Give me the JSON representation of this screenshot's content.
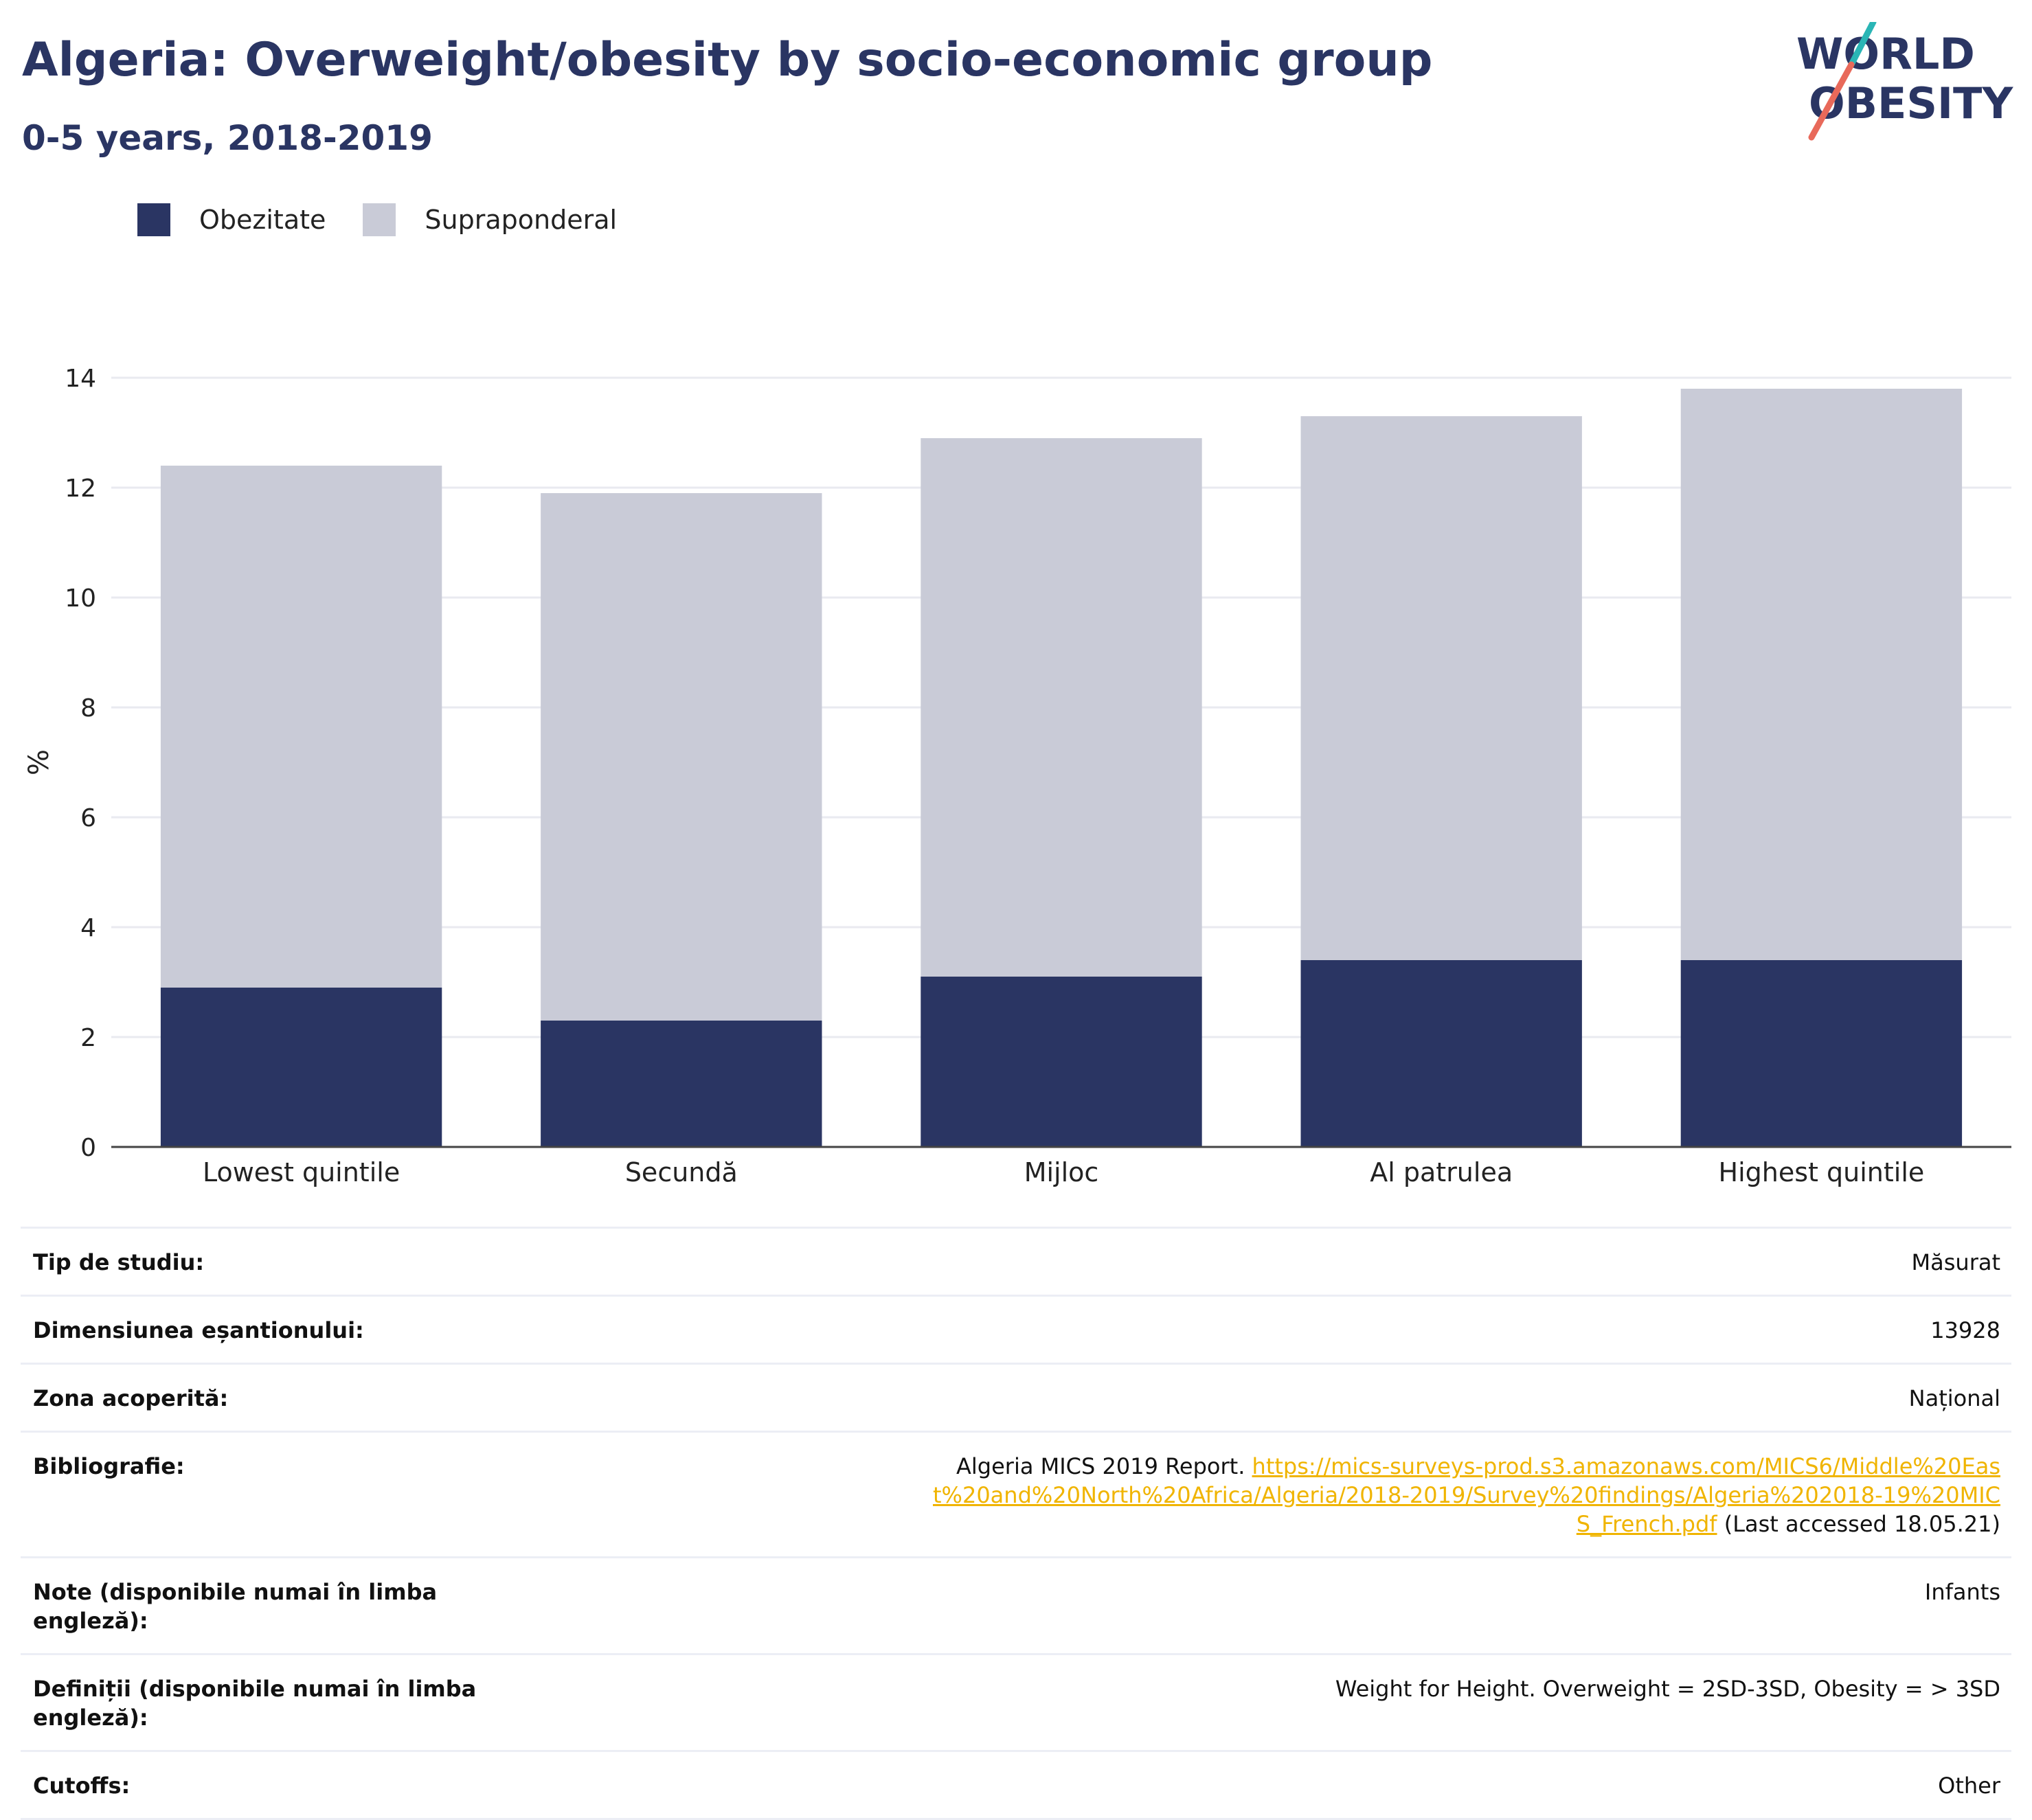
{
  "header": {
    "title": "Algeria: Overweight/obesity by socio-economic group",
    "subtitle": "0-5 years, 2018-2019"
  },
  "logo": {
    "line1": "WORLD",
    "line2": "OBESITY",
    "icon": "world-obesity-logo"
  },
  "legend": [
    {
      "label": "Obezitate",
      "color": "#2a3563"
    },
    {
      "label": "Supraponderal",
      "color": "#c9cbd7"
    }
  ],
  "chart_data": {
    "type": "bar",
    "stacked": true,
    "categories": [
      "Lowest quintile",
      "Secundă",
      "Mijloc",
      "Al patrulea",
      "Highest quintile"
    ],
    "series": [
      {
        "name": "Obezitate",
        "values": [
          2.9,
          2.3,
          3.1,
          3.4,
          3.4
        ],
        "color": "#2a3563"
      },
      {
        "name": "Supraponderal",
        "values": [
          9.5,
          9.6,
          9.8,
          9.9,
          10.4
        ],
        "color": "#c9cbd7"
      }
    ],
    "ylabel": "%",
    "ylim": [
      0,
      14
    ],
    "yticks": [
      0,
      2,
      4,
      6,
      8,
      10,
      12,
      14
    ],
    "grid": true
  },
  "info": [
    {
      "key": "Tip de studiu:",
      "value": "Măsurat"
    },
    {
      "key": "Dimensiunea eșantionului:",
      "value": "13928"
    },
    {
      "key": "Zona acoperită:",
      "value": "Național"
    },
    {
      "key": "Bibliografie:",
      "value": "Algeria MICS 2019 Report.",
      "link": "https://mics-surveys-prod.s3.amazonaws.com/MICS6/Middle%20East%20and%20North%20Africa/Algeria/2018-2019/Survey%20findings/Algeria%202018-19%20MICS_French.pdf",
      "suffix": "(Last accessed 18.05.21)"
    },
    {
      "key": "Note (disponibile numai în limba engleză):",
      "value": "Infants"
    },
    {
      "key": "Definiții (disponibile numai în limba engleză):",
      "value": "Weight for Height. Overweight = 2SD-3SD, Obesity = > 3SD"
    },
    {
      "key": "Cutoffs:",
      "value": "Other"
    }
  ]
}
